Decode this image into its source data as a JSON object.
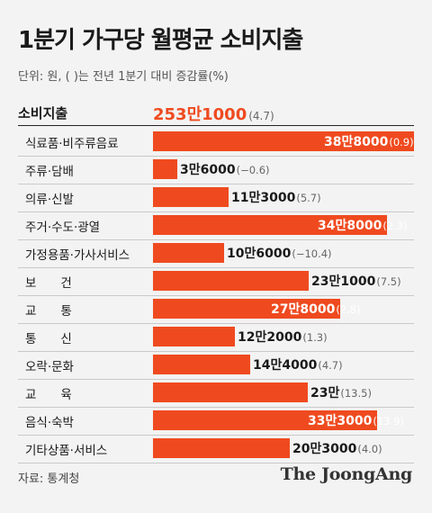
{
  "title": "1분기 가구당 월평균 소비지출",
  "unit_note": "단위: 원, ( )는 전년 1분기 대비 증감률(%)",
  "total": {
    "label": "소비지출",
    "value_label": "253만1000",
    "change_label": "(4.7)"
  },
  "source": "자료: 통계청",
  "brand": "The JoongAng",
  "colors": {
    "bar": "#ef4a1f",
    "total_value": "#ef4a1f"
  },
  "chart_data": {
    "type": "bar",
    "orientation": "horizontal",
    "categories": [
      "식료품·비주류음료",
      "주류·담배",
      "의류·신발",
      "주거·수도·광열",
      "가정용품·가사서비스",
      "보　　건",
      "교　　통",
      "통　　신",
      "오락·문화",
      "교　　육",
      "음식·숙박",
      "기타상품·서비스"
    ],
    "values": [
      388000,
      36000,
      113000,
      348000,
      106000,
      231000,
      278000,
      122000,
      144000,
      230000,
      333000,
      203000
    ],
    "value_labels": [
      "38만8000",
      "3만6000",
      "11만3000",
      "34만8000",
      "10만6000",
      "23만1000",
      "27만8000",
      "12만2000",
      "14만4000",
      "23만",
      "33만3000",
      "20만3000"
    ],
    "change_labels": [
      "(0.9)",
      "(−0.6)",
      "(5.7)",
      "(2.3)",
      "(−10.4)",
      "(7.5)",
      "(2.8)",
      "(1.3)",
      "(4.7)",
      "(13.5)",
      "(13.9)",
      "(4.0)"
    ],
    "changes": [
      0.9,
      -0.6,
      5.7,
      2.3,
      -10.4,
      7.5,
      2.8,
      1.3,
      4.7,
      13.5,
      13.9,
      4.0
    ],
    "label_inside": [
      true,
      false,
      false,
      true,
      false,
      false,
      true,
      false,
      false,
      false,
      true,
      false
    ],
    "total": 2531000,
    "total_change": 4.7,
    "xlim": [
      0,
      388000
    ],
    "grid": false,
    "legend": "none"
  }
}
